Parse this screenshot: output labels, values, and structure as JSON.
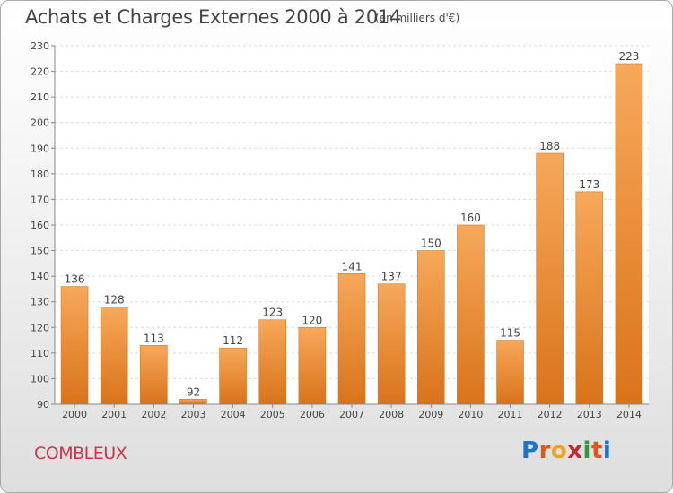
{
  "header": {
    "title": "Achats et Charges Externes 2000 à 2014",
    "subtitle": "(en milliers d'€)"
  },
  "footer": {
    "commune": "COMBLEUX",
    "logo_letters": [
      "P",
      "r",
      "o",
      "x",
      "i",
      "t",
      "i"
    ],
    "logo_colors": [
      "#1e74c8",
      "#e0571e",
      "#f0a41c",
      "#c0292d",
      "#2e9a3a",
      "#e0571e",
      "#1e74c8"
    ]
  },
  "chart_data": {
    "type": "bar",
    "title": "Achats et Charges Externes 2000 à 2014",
    "subtitle": "(en milliers d'€)",
    "categories": [
      "2000",
      "2001",
      "2002",
      "2003",
      "2004",
      "2005",
      "2006",
      "2007",
      "2008",
      "2009",
      "2010",
      "2011",
      "2012",
      "2013",
      "2014"
    ],
    "values": [
      136,
      128,
      113,
      92,
      112,
      123,
      120,
      141,
      137,
      150,
      160,
      115,
      188,
      173,
      223
    ],
    "ylim": [
      90,
      230
    ],
    "yticks": [
      90,
      100,
      110,
      120,
      130,
      140,
      150,
      160,
      170,
      180,
      190,
      200,
      210,
      220,
      230
    ],
    "grid": true,
    "bar_color": "#f0963a",
    "xlabel": "",
    "ylabel": ""
  }
}
